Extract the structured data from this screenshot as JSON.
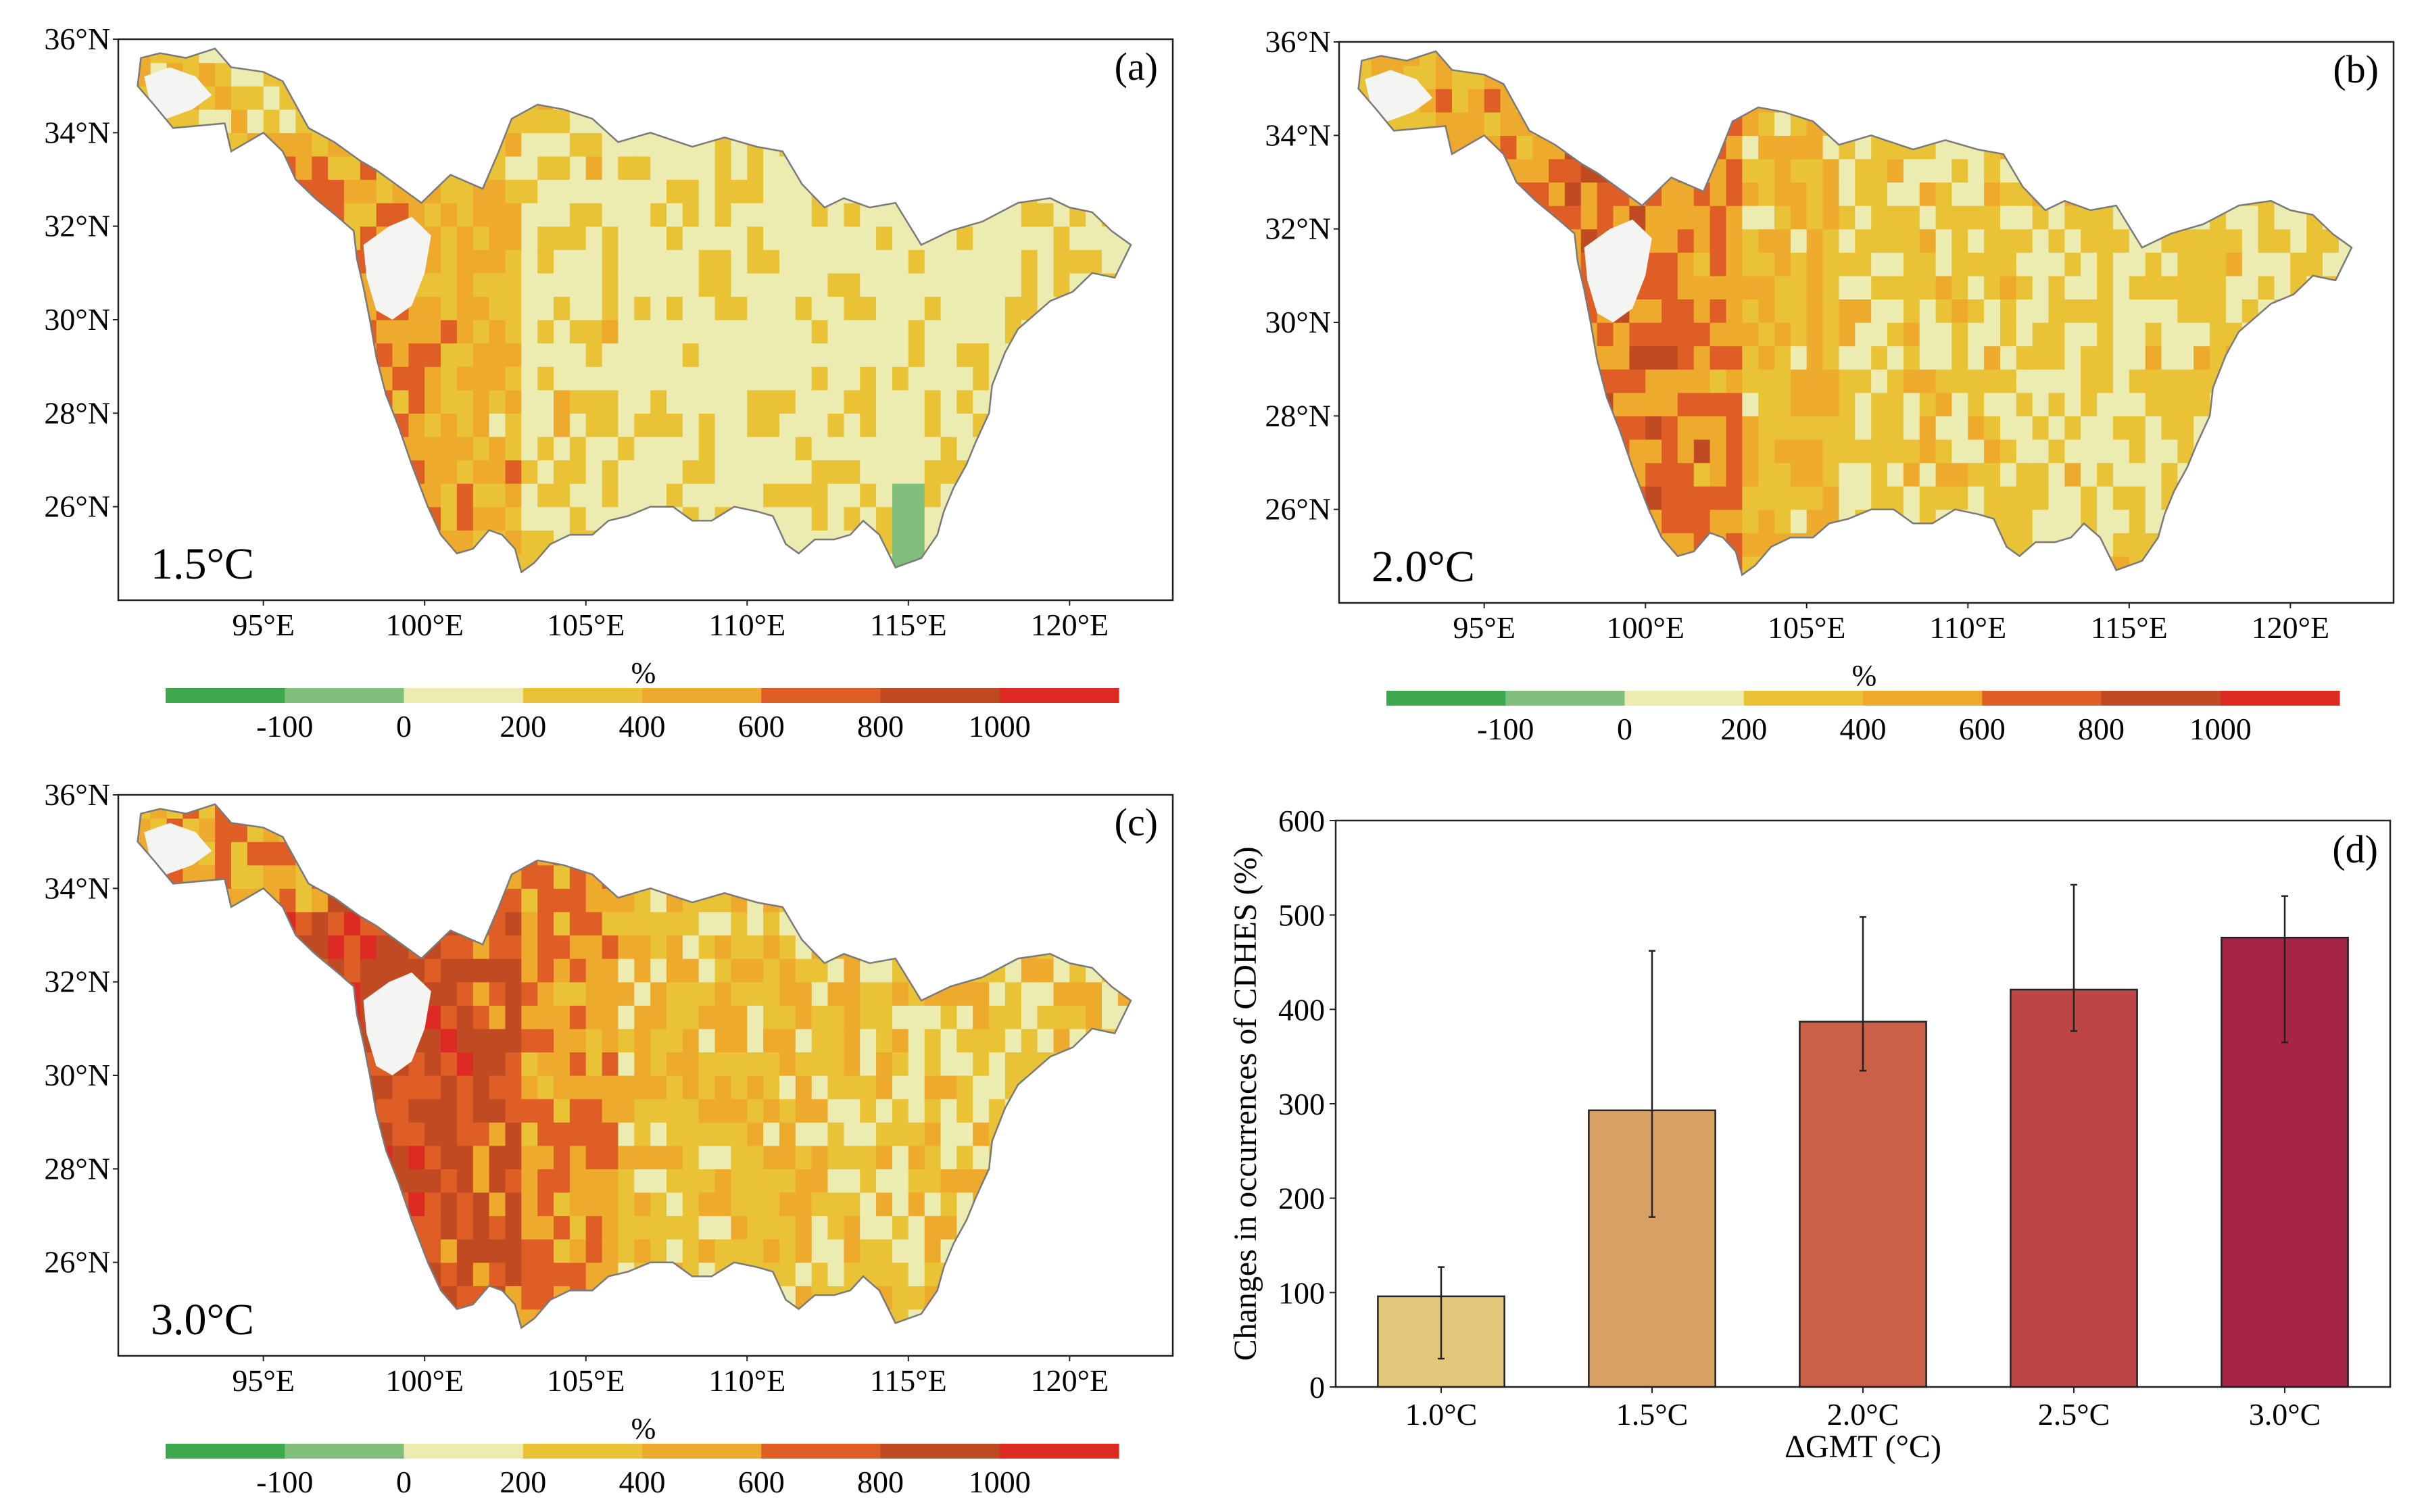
{
  "scale": {
    "unit": "%",
    "tick_labels": [
      "-100",
      "0",
      "200",
      "400",
      "600",
      "800",
      "1000"
    ],
    "colors": [
      "#3ea84c",
      "#7fbf7b",
      "#ecebb0",
      "#e9c236",
      "#eeaa2c",
      "#df5e26",
      "#c04b22",
      "#dd2a22"
    ]
  },
  "maps": [
    {
      "id": "a",
      "label": "(a)",
      "scenario": "1.5°C",
      "lat_ticks": [
        "36°N",
        "34°N",
        "32°N",
        "30°N",
        "28°N",
        "26°N"
      ],
      "lon_ticks": [
        "95°E",
        "100°E",
        "105°E",
        "110°E",
        "115°E",
        "120°E"
      ]
    },
    {
      "id": "b",
      "label": "(b)",
      "scenario": "2.0°C",
      "lat_ticks": [
        "36°N",
        "34°N",
        "32°N",
        "30°N",
        "28°N",
        "26°N"
      ],
      "lon_ticks": [
        "95°E",
        "100°E",
        "105°E",
        "110°E",
        "115°E",
        "120°E"
      ]
    },
    {
      "id": "c",
      "label": "(c)",
      "scenario": "3.0°C",
      "lat_ticks": [
        "36°N",
        "34°N",
        "32°N",
        "30°N",
        "28°N",
        "26°N"
      ],
      "lon_ticks": [
        "95°E",
        "100°E",
        "105°E",
        "110°E",
        "115°E",
        "120°E"
      ]
    }
  ],
  "chart_data": {
    "type": "bar",
    "label": "(d)",
    "categories": [
      "1.0°C",
      "1.5°C",
      "2.0°C",
      "2.5°C",
      "3.0°C"
    ],
    "values": [
      96,
      293,
      387,
      421,
      476
    ],
    "error_low": [
      30,
      180,
      335,
      377,
      365
    ],
    "error_high": [
      127,
      462,
      498,
      532,
      520
    ],
    "bar_colors": [
      "#e3c77b",
      "#d9a064",
      "#c96047",
      "#bd4645",
      "#a62444"
    ],
    "xlabel": "ΔGMT (°C)",
    "ylabel": "Changes in occurrences of CDHES (%)",
    "ylim": [
      0,
      600
    ],
    "yticks": [
      0,
      100,
      200,
      300,
      400,
      500,
      600
    ]
  }
}
